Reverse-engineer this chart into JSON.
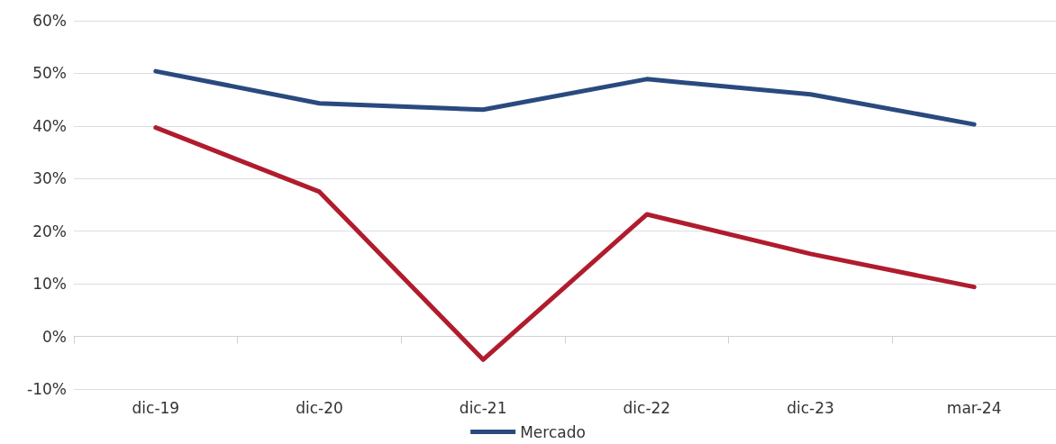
{
  "chart_data": {
    "type": "line",
    "categories": [
      "dic-19",
      "dic-20",
      "dic-21",
      "dic-22",
      "dic-23",
      "mar-24"
    ],
    "series": [
      {
        "color": "#b01c2e",
        "values": [
          39.7,
          27.5,
          -4.4,
          23.2,
          15.7,
          9.4
        ]
      },
      {
        "name": "Mercado",
        "color": "#2a4a7f",
        "values": [
          50.4,
          44.3,
          43.1,
          48.9,
          46.0,
          40.3
        ]
      }
    ],
    "ylim": [
      -10,
      60
    ],
    "yticks": [
      {
        "value": -10,
        "label": "-10%"
      },
      {
        "value": 0,
        "label": "0%"
      },
      {
        "value": 10,
        "label": "10%"
      },
      {
        "value": 20,
        "label": "20%"
      },
      {
        "value": 30,
        "label": "30%"
      },
      {
        "value": 40,
        "label": "40%"
      },
      {
        "value": 50,
        "label": "50%"
      },
      {
        "value": 60,
        "label": "60%"
      }
    ],
    "grid": "y",
    "legend": "bottom",
    "marker": "none",
    "line_style": "solid"
  }
}
